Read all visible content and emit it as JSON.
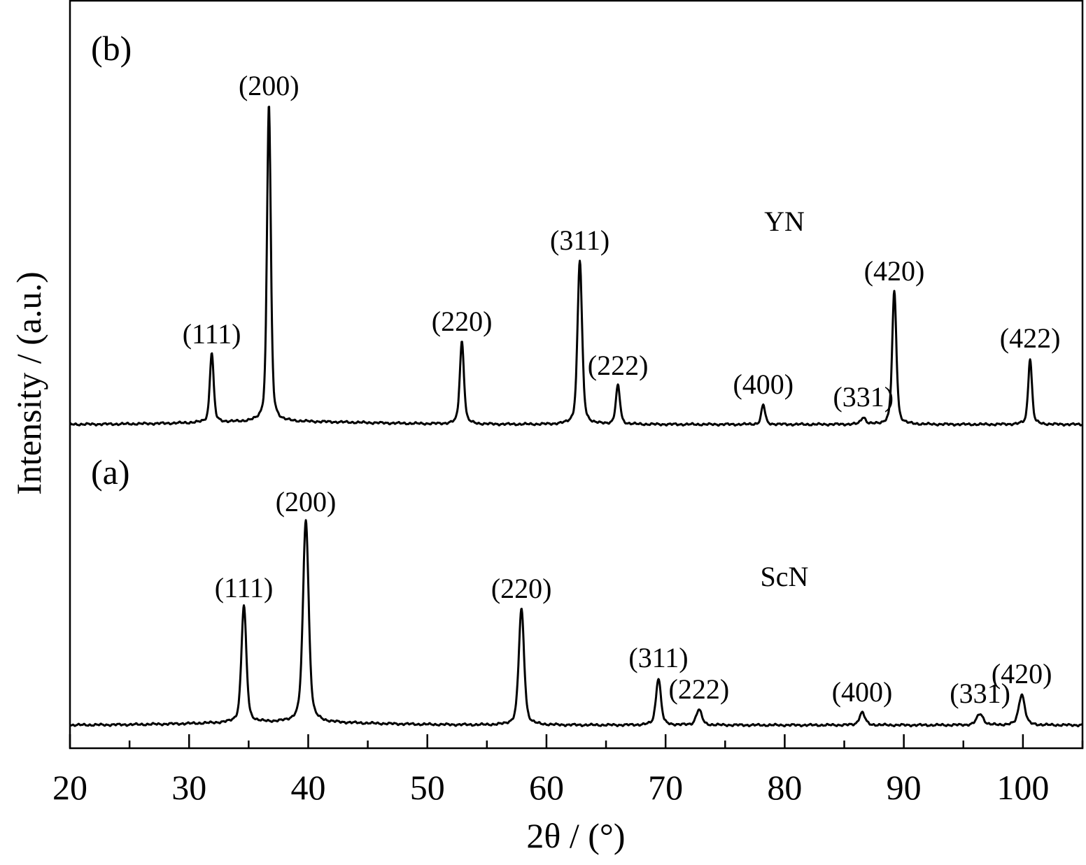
{
  "chart_data": {
    "type": "line",
    "xlabel": "2θ / (°)",
    "ylabel": "Intensity / (a.u.)",
    "xlim": [
      20,
      105
    ],
    "x_ticks": [
      20,
      30,
      40,
      50,
      60,
      70,
      80,
      90,
      100
    ],
    "grid": false,
    "series": [
      {
        "name": "ScN",
        "panel": "(a)",
        "baseline": 0,
        "peaks": [
          {
            "label": "(111)",
            "x": 34.6,
            "height": 167,
            "width": 0.26
          },
          {
            "label": "(200)",
            "x": 39.8,
            "height": 290,
            "width": 0.3
          },
          {
            "label": "(220)",
            "x": 57.9,
            "height": 166,
            "width": 0.28
          },
          {
            "label": "(311)",
            "x": 69.4,
            "height": 67,
            "width": 0.26
          },
          {
            "label": "(222)",
            "x": 72.8,
            "height": 22,
            "width": 0.3
          },
          {
            "label": "(400)",
            "x": 86.5,
            "height": 18,
            "width": 0.3
          },
          {
            "label": "(331)",
            "x": 96.4,
            "height": 16,
            "width": 0.35
          },
          {
            "label": "(420)",
            "x": 99.9,
            "height": 44,
            "width": 0.32
          }
        ]
      },
      {
        "name": "YN",
        "panel": "(b)",
        "baseline": 430,
        "peaks": [
          {
            "label": "(111)",
            "x": 31.9,
            "height": 100,
            "width": 0.2
          },
          {
            "label": "(200)",
            "x": 36.7,
            "height": 455,
            "width": 0.2
          },
          {
            "label": "(220)",
            "x": 52.9,
            "height": 118,
            "width": 0.22
          },
          {
            "label": "(311)",
            "x": 62.8,
            "height": 234,
            "width": 0.24
          },
          {
            "label": "(222)",
            "x": 66.0,
            "height": 55,
            "width": 0.22
          },
          {
            "label": "(400)",
            "x": 78.2,
            "height": 28,
            "width": 0.2
          },
          {
            "label": "(331)",
            "x": 86.6,
            "height": 10,
            "width": 0.25
          },
          {
            "label": "(420)",
            "x": 89.2,
            "height": 190,
            "width": 0.22
          },
          {
            "label": "(422)",
            "x": 100.6,
            "height": 94,
            "width": 0.2
          }
        ]
      }
    ]
  }
}
